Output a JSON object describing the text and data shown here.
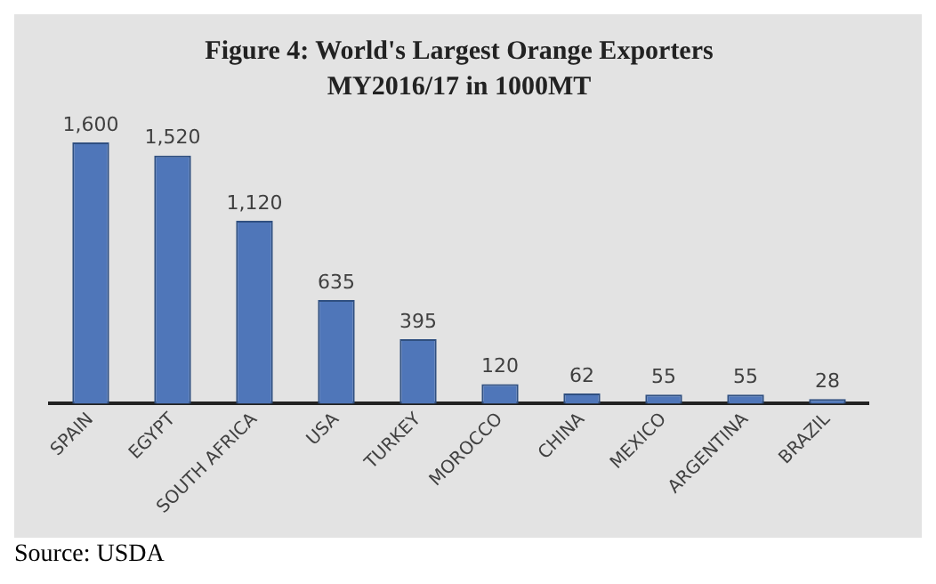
{
  "chart_data": {
    "type": "bar",
    "title": "Figure 4: World's Largest Orange Exporters",
    "subtitle": "MY2016/17 in 1000MT",
    "categories": [
      "SPAIN",
      "EGYPT",
      "SOUTH AFRICA",
      "USA",
      "TURKEY",
      "MOROCCO",
      "CHINA",
      "MEXICO",
      "ARGENTINA",
      "BRAZIL"
    ],
    "values": [
      1600,
      1520,
      1120,
      635,
      395,
      120,
      62,
      55,
      55,
      28
    ],
    "value_labels": [
      "1,600",
      "1,520",
      "1,120",
      "635",
      "395",
      "120",
      "62",
      "55",
      "55",
      "28"
    ],
    "color": "#4f76b9",
    "grid": false,
    "legend": false,
    "annotations": [
      "Source: USDA"
    ]
  }
}
